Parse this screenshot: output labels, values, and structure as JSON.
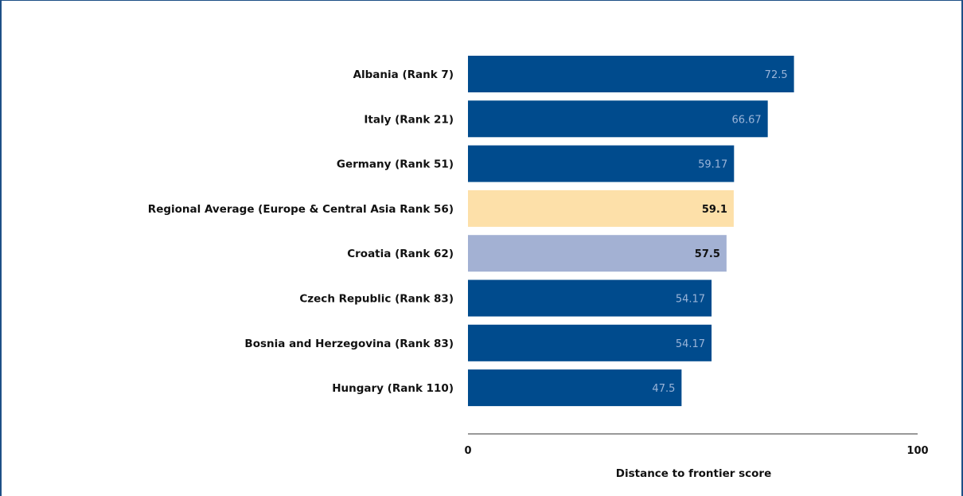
{
  "chart_data": {
    "type": "bar",
    "orientation": "horizontal",
    "title": "",
    "xlabel": "Distance to frontier score",
    "ylabel": "",
    "xlim": [
      0,
      100
    ],
    "ticks": [
      {
        "value": 0,
        "label": "0"
      },
      {
        "value": 100,
        "label": "100"
      }
    ],
    "grid": false,
    "categories": [
      "Albania (Rank 7)",
      "Italy (Rank 21)",
      "Germany (Rank 51)",
      "Regional Average (Europe & Central Asia Rank 56)",
      "Croatia (Rank 62)",
      "Czech Republic (Rank 83)",
      "Bosnia and Herzegovina (Rank 83)",
      "Hungary (Rank 110)"
    ],
    "values": [
      72.5,
      66.67,
      59.17,
      59.1,
      57.5,
      54.17,
      54.17,
      47.5
    ],
    "value_labels": [
      "72.5",
      "66.67",
      "59.17",
      "59.1",
      "57.5",
      "54.17",
      "54.17",
      "47.5"
    ],
    "bar_colors": [
      "#004b8d",
      "#004b8d",
      "#004b8d",
      "#fde0a9",
      "#a3b1d3",
      "#004b8d",
      "#004b8d",
      "#004b8d"
    ],
    "label_colors": [
      "#9ab4d8",
      "#9ab4d8",
      "#9ab4d8",
      "#111111",
      "#111111",
      "#9ab4d8",
      "#9ab4d8",
      "#9ab4d8"
    ]
  }
}
